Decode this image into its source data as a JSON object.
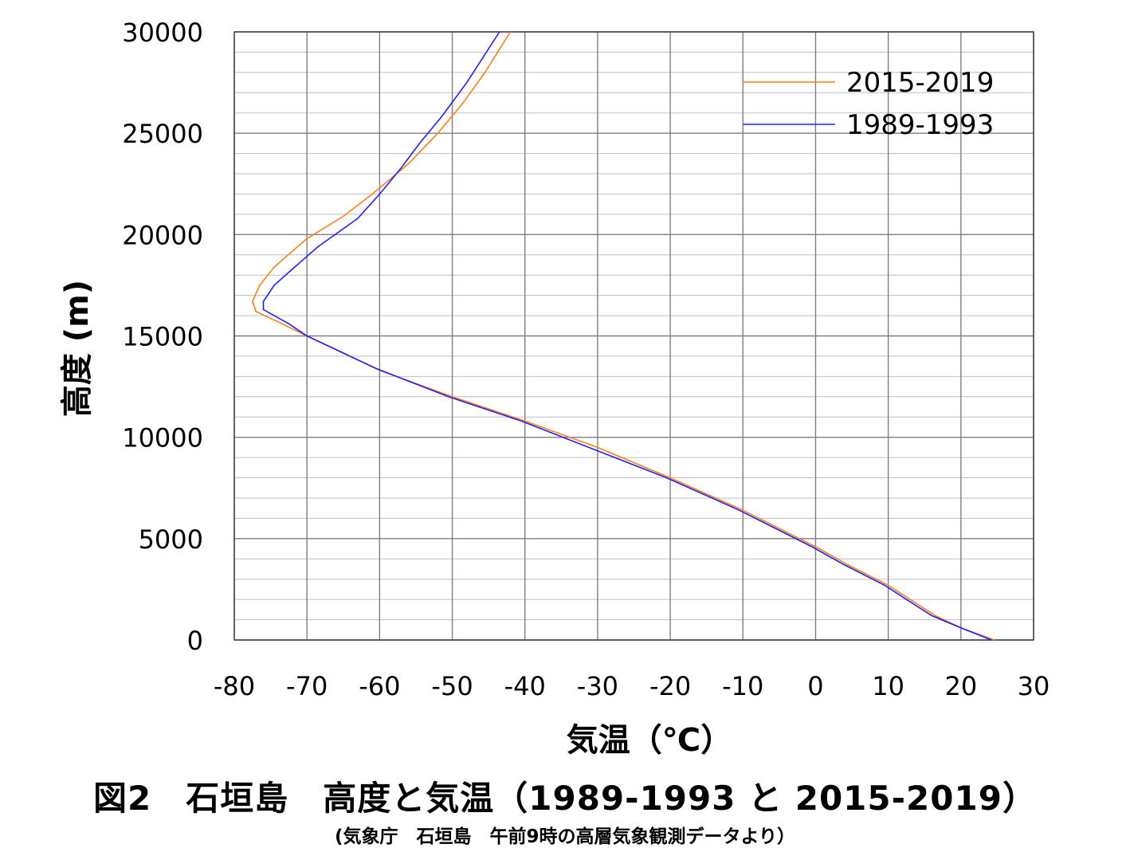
{
  "figure": {
    "title": "図2　石垣島　高度と気温（1989-1993 と 2015-2019）",
    "source": "(気象庁　石垣島　午前9時の高層気象観測データより）"
  },
  "chart_data": {
    "type": "line",
    "xlabel": "気温（℃）",
    "ylabel": "高度 (m)",
    "xlim": [
      -80,
      30
    ],
    "ylim": [
      0,
      30000
    ],
    "x_ticks": [
      -80,
      -70,
      -60,
      -50,
      -40,
      -30,
      -20,
      -10,
      0,
      10,
      20,
      30
    ],
    "y_ticks": [
      0,
      5000,
      10000,
      15000,
      20000,
      25000,
      30000
    ],
    "x_tick_labels": [
      "-80",
      "-70",
      "-60",
      "-50",
      "-40",
      "-30",
      "-20",
      "-10",
      "0",
      "10",
      "20",
      "30"
    ],
    "y_tick_labels": [
      "0",
      "5000",
      "10000",
      "15000",
      "20000",
      "25000",
      "30000"
    ],
    "grid": true,
    "legend_position": "top-right",
    "series": [
      {
        "name": "2015-2019",
        "color": "#ff7f0e",
        "points": [
          [
            24.6,
            0
          ],
          [
            20,
            600
          ],
          [
            16.5,
            1200
          ],
          [
            13,
            2000
          ],
          [
            10,
            2700
          ],
          [
            4.5,
            3700
          ],
          [
            0,
            4600
          ],
          [
            -5,
            5500
          ],
          [
            -10,
            6400
          ],
          [
            -20,
            8000
          ],
          [
            -30,
            9500
          ],
          [
            -40,
            10800
          ],
          [
            -50,
            12000
          ],
          [
            -60,
            13300
          ],
          [
            -70,
            15000
          ],
          [
            -74,
            15700
          ],
          [
            -77,
            16200
          ],
          [
            -77.5,
            16700
          ],
          [
            -76.5,
            17500
          ],
          [
            -74.5,
            18400
          ],
          [
            -70,
            19800
          ],
          [
            -65,
            20900
          ],
          [
            -61,
            22000
          ],
          [
            -56,
            23500
          ],
          [
            -52,
            25000
          ],
          [
            -48.5,
            26500
          ],
          [
            -45.5,
            28000
          ],
          [
            -42,
            30000
          ]
        ]
      },
      {
        "name": "1989-1993",
        "color": "#1f1fff",
        "points": [
          [
            24.2,
            0
          ],
          [
            20,
            600
          ],
          [
            16,
            1200
          ],
          [
            12.5,
            2000
          ],
          [
            9.5,
            2700
          ],
          [
            4,
            3700
          ],
          [
            -0.5,
            4600
          ],
          [
            -5.5,
            5500
          ],
          [
            -10.5,
            6400
          ],
          [
            -20.5,
            8000
          ],
          [
            -30.5,
            9400
          ],
          [
            -40.5,
            10800
          ],
          [
            -50.5,
            12000
          ],
          [
            -60.5,
            13400
          ],
          [
            -70,
            15000
          ],
          [
            -72.5,
            15600
          ],
          [
            -74.5,
            16000
          ],
          [
            -76,
            16300
          ],
          [
            -76,
            16700
          ],
          [
            -74.5,
            17500
          ],
          [
            -72,
            18300
          ],
          [
            -68.5,
            19400
          ],
          [
            -63,
            20800
          ],
          [
            -60,
            22000
          ],
          [
            -57,
            23300
          ],
          [
            -54.5,
            24500
          ],
          [
            -51.5,
            25800
          ],
          [
            -48,
            27500
          ],
          [
            -43.5,
            30000
          ]
        ]
      }
    ]
  }
}
